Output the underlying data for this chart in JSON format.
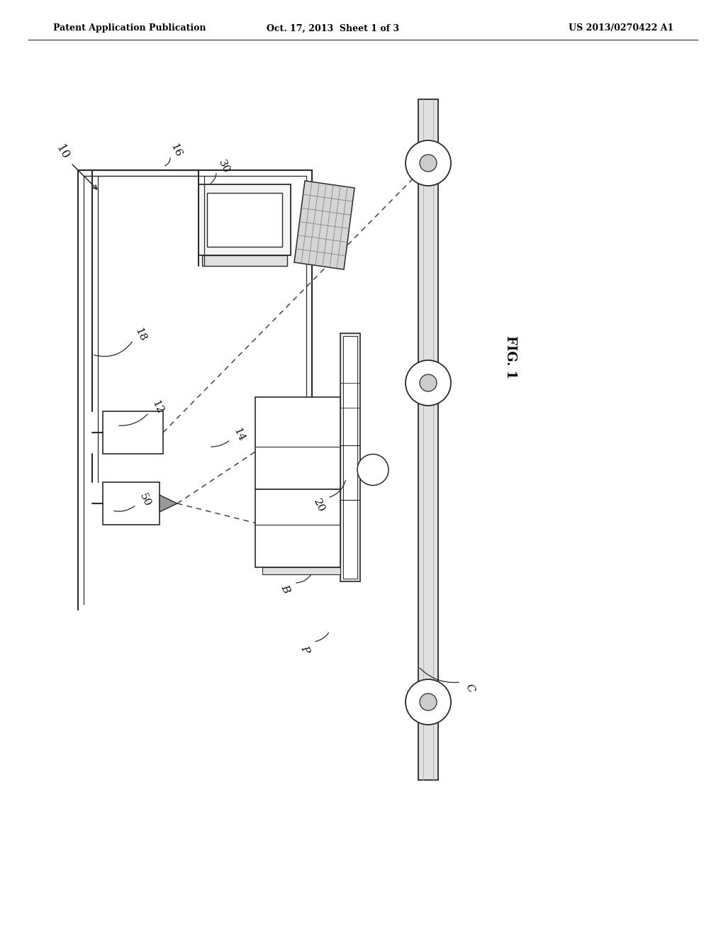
{
  "background_color": "#ffffff",
  "header_left": "Patent Application Publication",
  "header_center": "Oct. 17, 2013  Sheet 1 of 3",
  "header_right": "US 2013/0270422 A1",
  "fig_label": "FIG. 1",
  "line_color": "#2a2a2a",
  "dashed_color": "#444444",
  "gray_light": "#d8d8d8",
  "gray_mid": "#aaaaaa",
  "gray_dark": "#888888"
}
